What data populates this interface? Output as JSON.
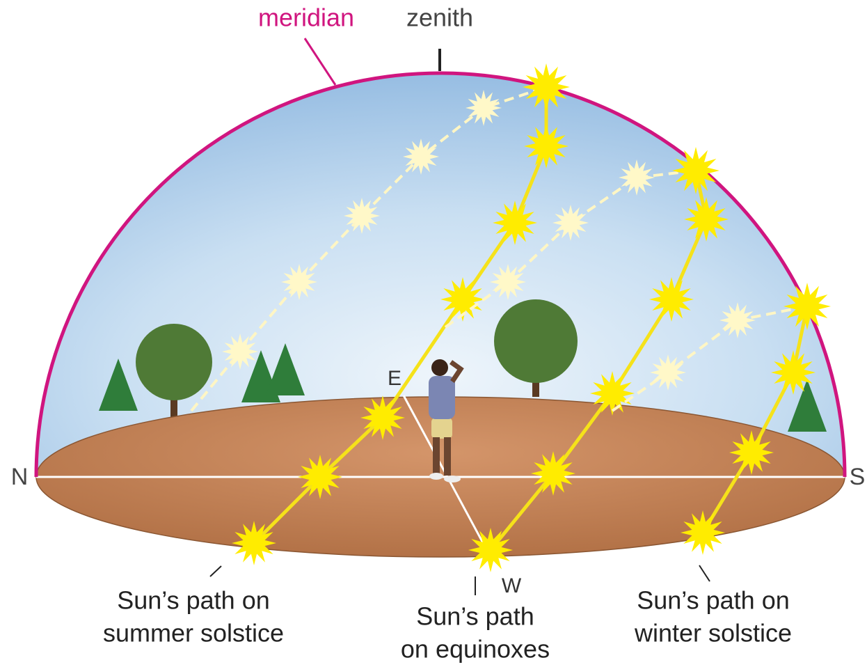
{
  "labels": {
    "meridian": "meridian",
    "zenith": "zenith",
    "north": "N",
    "south": "S",
    "east": "E",
    "west": "W"
  },
  "paths": [
    {
      "lines": [
        "Sun’s path on",
        "summer solstice"
      ]
    },
    {
      "lines": [
        "Sun’s path",
        "on equinoxes"
      ]
    },
    {
      "lines": [
        "Sun’s path on",
        "winter solstice"
      ]
    }
  ]
}
